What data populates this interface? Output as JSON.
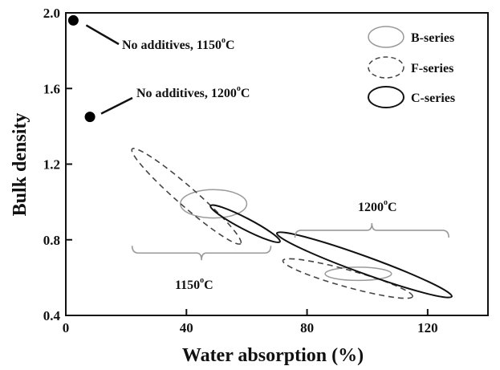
{
  "chart_data": {
    "type": "scatter",
    "xlabel": "Water absorption (%)",
    "ylabel": "Bulk density",
    "xlim": [
      0,
      140
    ],
    "ylim": [
      0.4,
      2.0
    ],
    "x_ticks": [
      0,
      40,
      80,
      120
    ],
    "y_ticks": [
      0.4,
      0.8,
      1.2,
      1.6,
      2.0
    ],
    "x_tick_labels": [
      "0",
      "40",
      "80",
      "120"
    ],
    "y_tick_labels": [
      "0.4",
      "0.8",
      "1.2",
      "1.6",
      "2.0"
    ],
    "grid": false,
    "legend_position": "top-right",
    "points": [
      {
        "x": 2.5,
        "y": 1.96,
        "label": "No additives, 1150°C"
      },
      {
        "x": 8.0,
        "y": 1.45,
        "label": "No additives, 1200°C"
      }
    ],
    "series": [
      {
        "name": "B-series",
        "style": "thin-solid",
        "regions": [
          {
            "cx": 49,
            "cy": 0.99,
            "rx": 11,
            "ry": 0.075,
            "angle_deg": 0
          },
          {
            "cx": 97,
            "cy": 0.62,
            "rx": 11,
            "ry": 0.035,
            "angle_deg": 0
          }
        ]
      },
      {
        "name": "F-series",
        "style": "dashed",
        "regions": [
          {
            "cx": 40,
            "cy": 1.03,
            "from": [
              22,
              1.28
            ],
            "to": [
              58,
              0.78
            ],
            "minor": 0.05
          },
          {
            "cx": 95,
            "cy": 0.61,
            "from": [
              72,
              0.69
            ],
            "to": [
              115,
              0.5
            ],
            "minor": 0.045
          }
        ]
      },
      {
        "name": "C-series",
        "style": "thick-solid",
        "regions": [
          {
            "cx": 59.5,
            "cy": 0.88,
            "from": [
              48,
              0.98
            ],
            "to": [
              71,
              0.79
            ],
            "minor": 0.03
          },
          {
            "cx": 99,
            "cy": 0.665,
            "from": [
              70,
              0.835
            ],
            "to": [
              128,
              0.5
            ],
            "minor": 0.045
          }
        ]
      }
    ],
    "annotations": [
      {
        "text": "No additives, 1150",
        "sup": "o",
        "unit": "C"
      },
      {
        "text": "No additives, 1200",
        "sup": "o",
        "unit": "C"
      },
      {
        "text": "1150",
        "sup": "o",
        "unit": "C"
      },
      {
        "text": "1200",
        "sup": "o",
        "unit": "C"
      }
    ]
  }
}
